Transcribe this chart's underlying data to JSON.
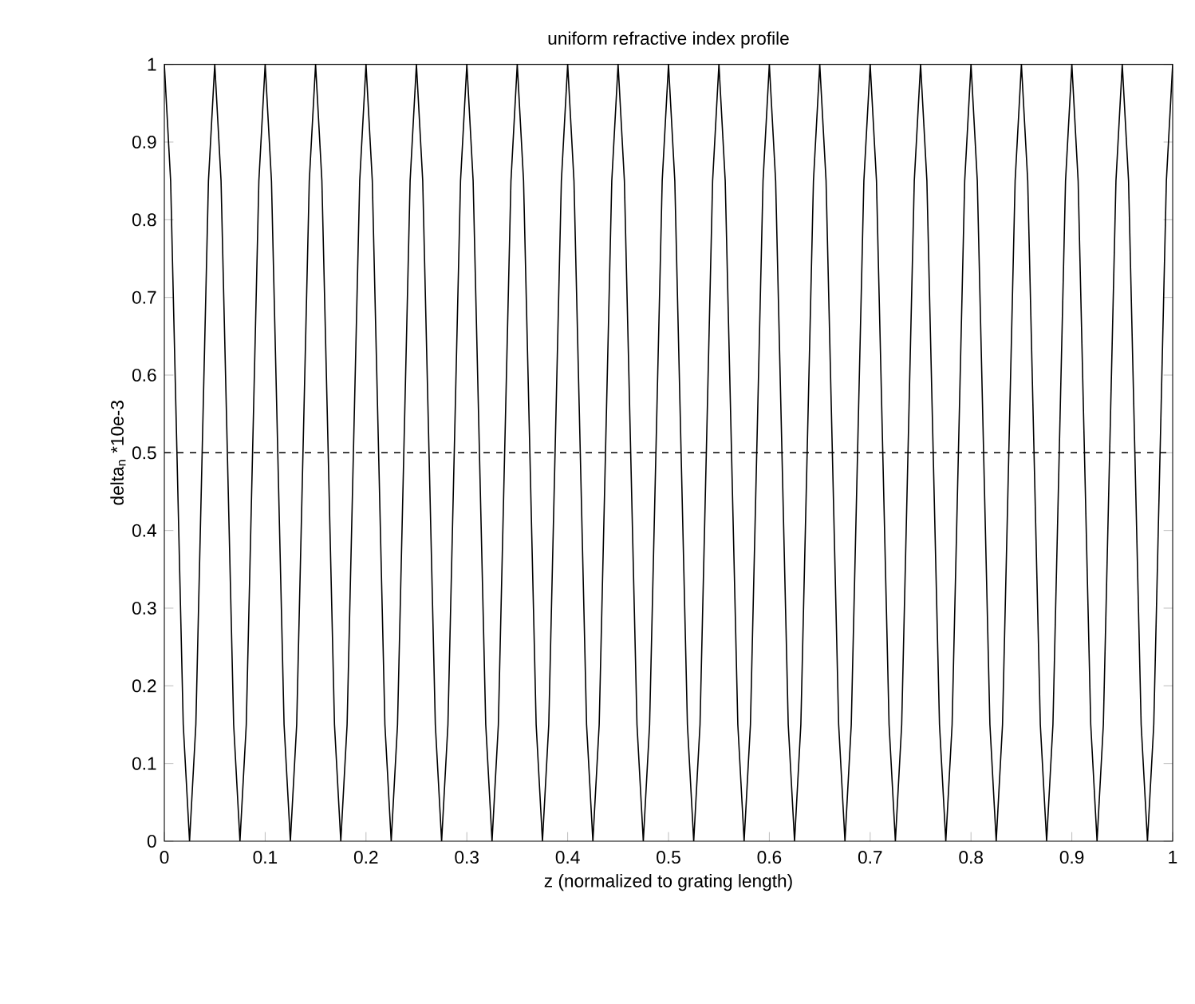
{
  "chart_data": {
    "type": "line",
    "title": "uniform refractive index profile",
    "xlabel": "z (normalized to grating length)",
    "ylabel": "delta$_{n}$ *10e-3",
    "xlim": [
      0,
      1
    ],
    "ylim": [
      0,
      1
    ],
    "xticks": [
      0,
      0.1,
      0.2,
      0.3,
      0.4,
      0.5,
      0.6,
      0.7,
      0.8,
      0.9,
      1
    ],
    "yticks": [
      0,
      0.1,
      0.2,
      0.3,
      0.4,
      0.5,
      0.6,
      0.7,
      0.8,
      0.9,
      1
    ],
    "grid": false,
    "marker": "none",
    "line_style": "solid",
    "ref_lines": [
      {
        "axis": "y",
        "value": 0.5,
        "color": "#000000",
        "line_style": "dashed"
      }
    ],
    "series": [
      {
        "color": "#000000",
        "x": [
          0,
          0.00625,
          0.0125,
          0.01875,
          0.025,
          0.03125,
          0.0375,
          0.04375,
          0.05,
          0.05625,
          0.0625,
          0.06875,
          0.075,
          0.08125,
          0.0875,
          0.09375,
          0.1,
          0.10625,
          0.1125,
          0.11875,
          0.125,
          0.13125,
          0.1375,
          0.14375,
          0.15,
          0.15625,
          0.1625,
          0.16875,
          0.175,
          0.18125,
          0.1875,
          0.19375,
          0.2,
          0.20625,
          0.2125,
          0.21875,
          0.225,
          0.23125,
          0.2375,
          0.24375,
          0.25,
          0.25625,
          0.2625,
          0.26875,
          0.275,
          0.28125,
          0.2875,
          0.29375,
          0.3,
          0.30625,
          0.3125,
          0.31875,
          0.325,
          0.33125,
          0.3375,
          0.34375,
          0.35,
          0.35625,
          0.3625,
          0.36875,
          0.375,
          0.38125,
          0.3875,
          0.39375,
          0.4,
          0.40625,
          0.4125,
          0.41875,
          0.425,
          0.43125,
          0.4375,
          0.44375,
          0.45,
          0.45625,
          0.4625,
          0.46875,
          0.475,
          0.48125,
          0.4875,
          0.49375,
          0.5,
          0.50625,
          0.5125,
          0.51875,
          0.525,
          0.53125,
          0.5375,
          0.54375,
          0.55,
          0.55625,
          0.5625,
          0.56875,
          0.575,
          0.58125,
          0.5875,
          0.59375,
          0.6,
          0.60625,
          0.6125,
          0.61875,
          0.625,
          0.63125,
          0.6375,
          0.64375,
          0.65,
          0.65625,
          0.6625,
          0.66875,
          0.675,
          0.68125,
          0.6875,
          0.69375,
          0.7,
          0.70625,
          0.7125,
          0.71875,
          0.725,
          0.73125,
          0.7375,
          0.74375,
          0.75,
          0.75625,
          0.7625,
          0.76875,
          0.775,
          0.78125,
          0.7875,
          0.79375,
          0.8,
          0.80625,
          0.8125,
          0.81875,
          0.825,
          0.83125,
          0.8375,
          0.84375,
          0.85,
          0.85625,
          0.8625,
          0.86875,
          0.875,
          0.88125,
          0.8875,
          0.89375,
          0.9,
          0.90625,
          0.9125,
          0.91875,
          0.925,
          0.93125,
          0.9375,
          0.94375,
          0.95,
          0.95625,
          0.9625,
          0.96875,
          0.975,
          0.98125,
          0.9875,
          0.99375,
          1
        ],
        "values": [
          1,
          0.85,
          0.5,
          0.15,
          0,
          0.15,
          0.5,
          0.85,
          1,
          0.85,
          0.5,
          0.15,
          0,
          0.15,
          0.5,
          0.85,
          1,
          0.85,
          0.5,
          0.15,
          0,
          0.15,
          0.5,
          0.85,
          1,
          0.85,
          0.5,
          0.15,
          0,
          0.15,
          0.5,
          0.85,
          1,
          0.85,
          0.5,
          0.15,
          0,
          0.15,
          0.5,
          0.85,
          1,
          0.85,
          0.5,
          0.15,
          0,
          0.15,
          0.5,
          0.85,
          1,
          0.85,
          0.5,
          0.15,
          0,
          0.15,
          0.5,
          0.85,
          1,
          0.85,
          0.5,
          0.15,
          0,
          0.15,
          0.5,
          0.85,
          1,
          0.85,
          0.5,
          0.15,
          0,
          0.15,
          0.5,
          0.85,
          1,
          0.85,
          0.5,
          0.15,
          0,
          0.15,
          0.5,
          0.85,
          1,
          0.85,
          0.5,
          0.15,
          0,
          0.15,
          0.5,
          0.85,
          1,
          0.85,
          0.5,
          0.15,
          0,
          0.15,
          0.5,
          0.85,
          1,
          0.85,
          0.5,
          0.15,
          0,
          0.15,
          0.5,
          0.85,
          1,
          0.85,
          0.5,
          0.15,
          0,
          0.15,
          0.5,
          0.85,
          1,
          0.85,
          0.5,
          0.15,
          0,
          0.15,
          0.5,
          0.85,
          1,
          0.85,
          0.5,
          0.15,
          0,
          0.15,
          0.5,
          0.85,
          1,
          0.85,
          0.5,
          0.15,
          0,
          0.15,
          0.5,
          0.85,
          1,
          0.85,
          0.5,
          0.15,
          0,
          0.15,
          0.5,
          0.85,
          1,
          0.85,
          0.5,
          0.15,
          0,
          0.15,
          0.5,
          0.85,
          1,
          0.85,
          0.5,
          0.15,
          0,
          0.15,
          0.5,
          0.85,
          1
        ]
      }
    ]
  }
}
